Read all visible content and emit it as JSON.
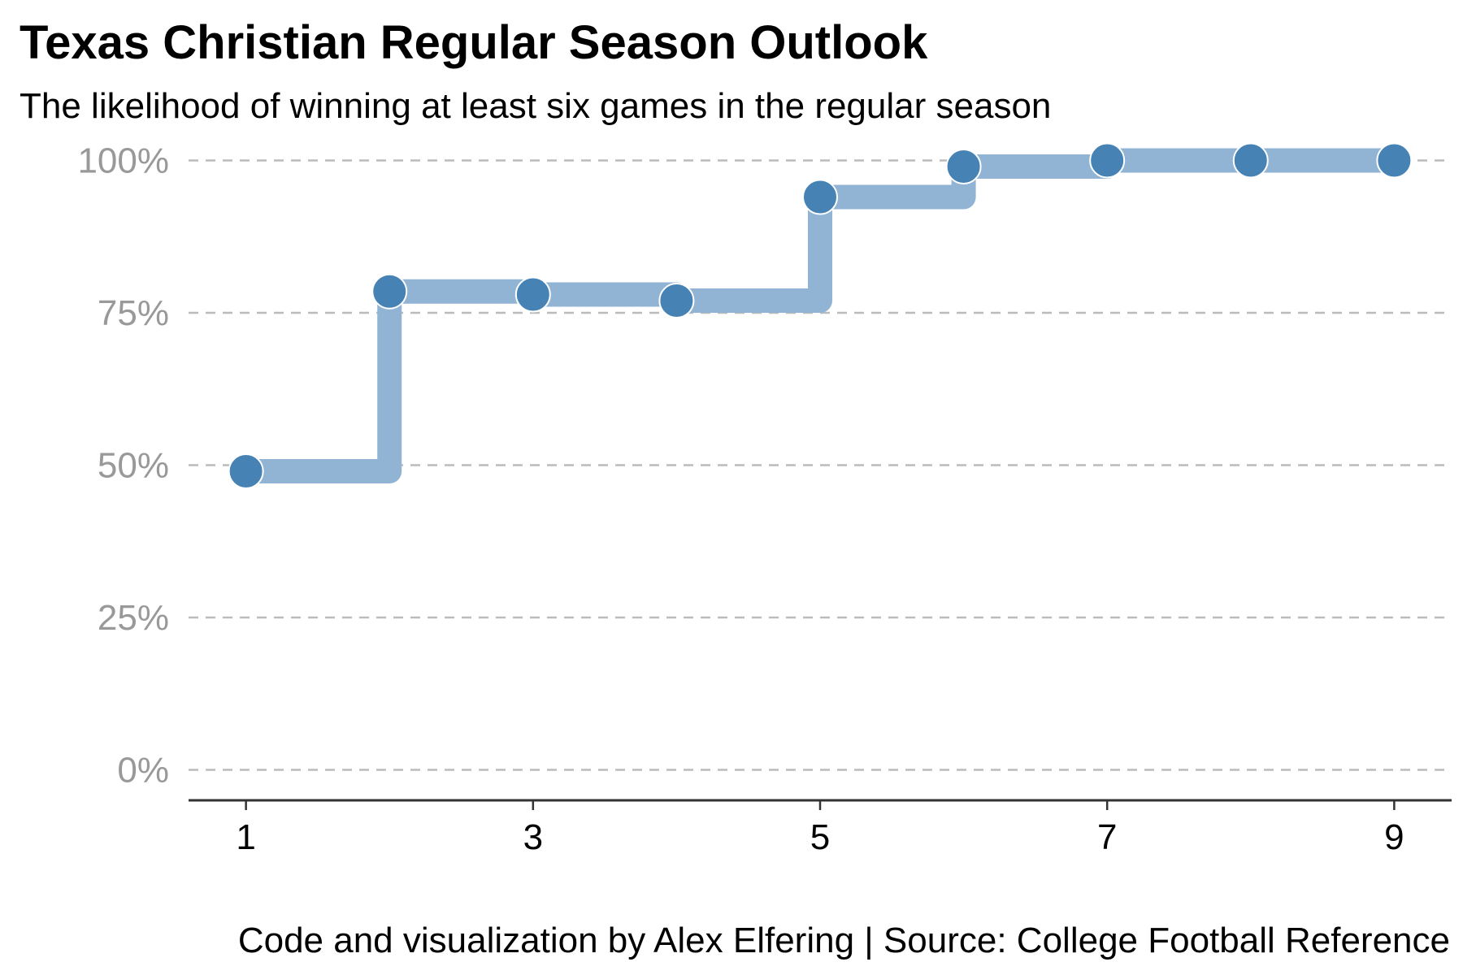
{
  "chart_data": {
    "type": "line",
    "title": "Texas Christian Regular Season Outlook",
    "subtitle": "The likelihood of winning at least six games in the regular season",
    "caption": "Code and visualization by Alex Elfering | Source: College Football Reference",
    "xlabel": "",
    "ylabel": "",
    "x": [
      1,
      2,
      3,
      4,
      5,
      6,
      7,
      8,
      9
    ],
    "series": [
      {
        "values": [
          0.49,
          0.785,
          0.78,
          0.77,
          0.94,
          0.99,
          1.0,
          1.0,
          1.0
        ]
      }
    ],
    "step": "hv",
    "xlim": [
      0.6,
      9.4
    ],
    "ylim": [
      -0.05,
      1.05
    ],
    "x_ticks": [
      "1",
      "3",
      "5",
      "7",
      "9"
    ],
    "x_tick_values": [
      1,
      3,
      5,
      7,
      9
    ],
    "y_ticks": [
      "0%",
      "25%",
      "50%",
      "75%",
      "100%"
    ],
    "y_tick_values": [
      0,
      0.25,
      0.5,
      0.75,
      1.0
    ],
    "grid": "horizontal dashed",
    "colors": {
      "line": "#92b4d4",
      "point": "#4682b4",
      "grid": "#bbbbbb",
      "axis": "#333333",
      "tick_label": "#999999"
    }
  }
}
